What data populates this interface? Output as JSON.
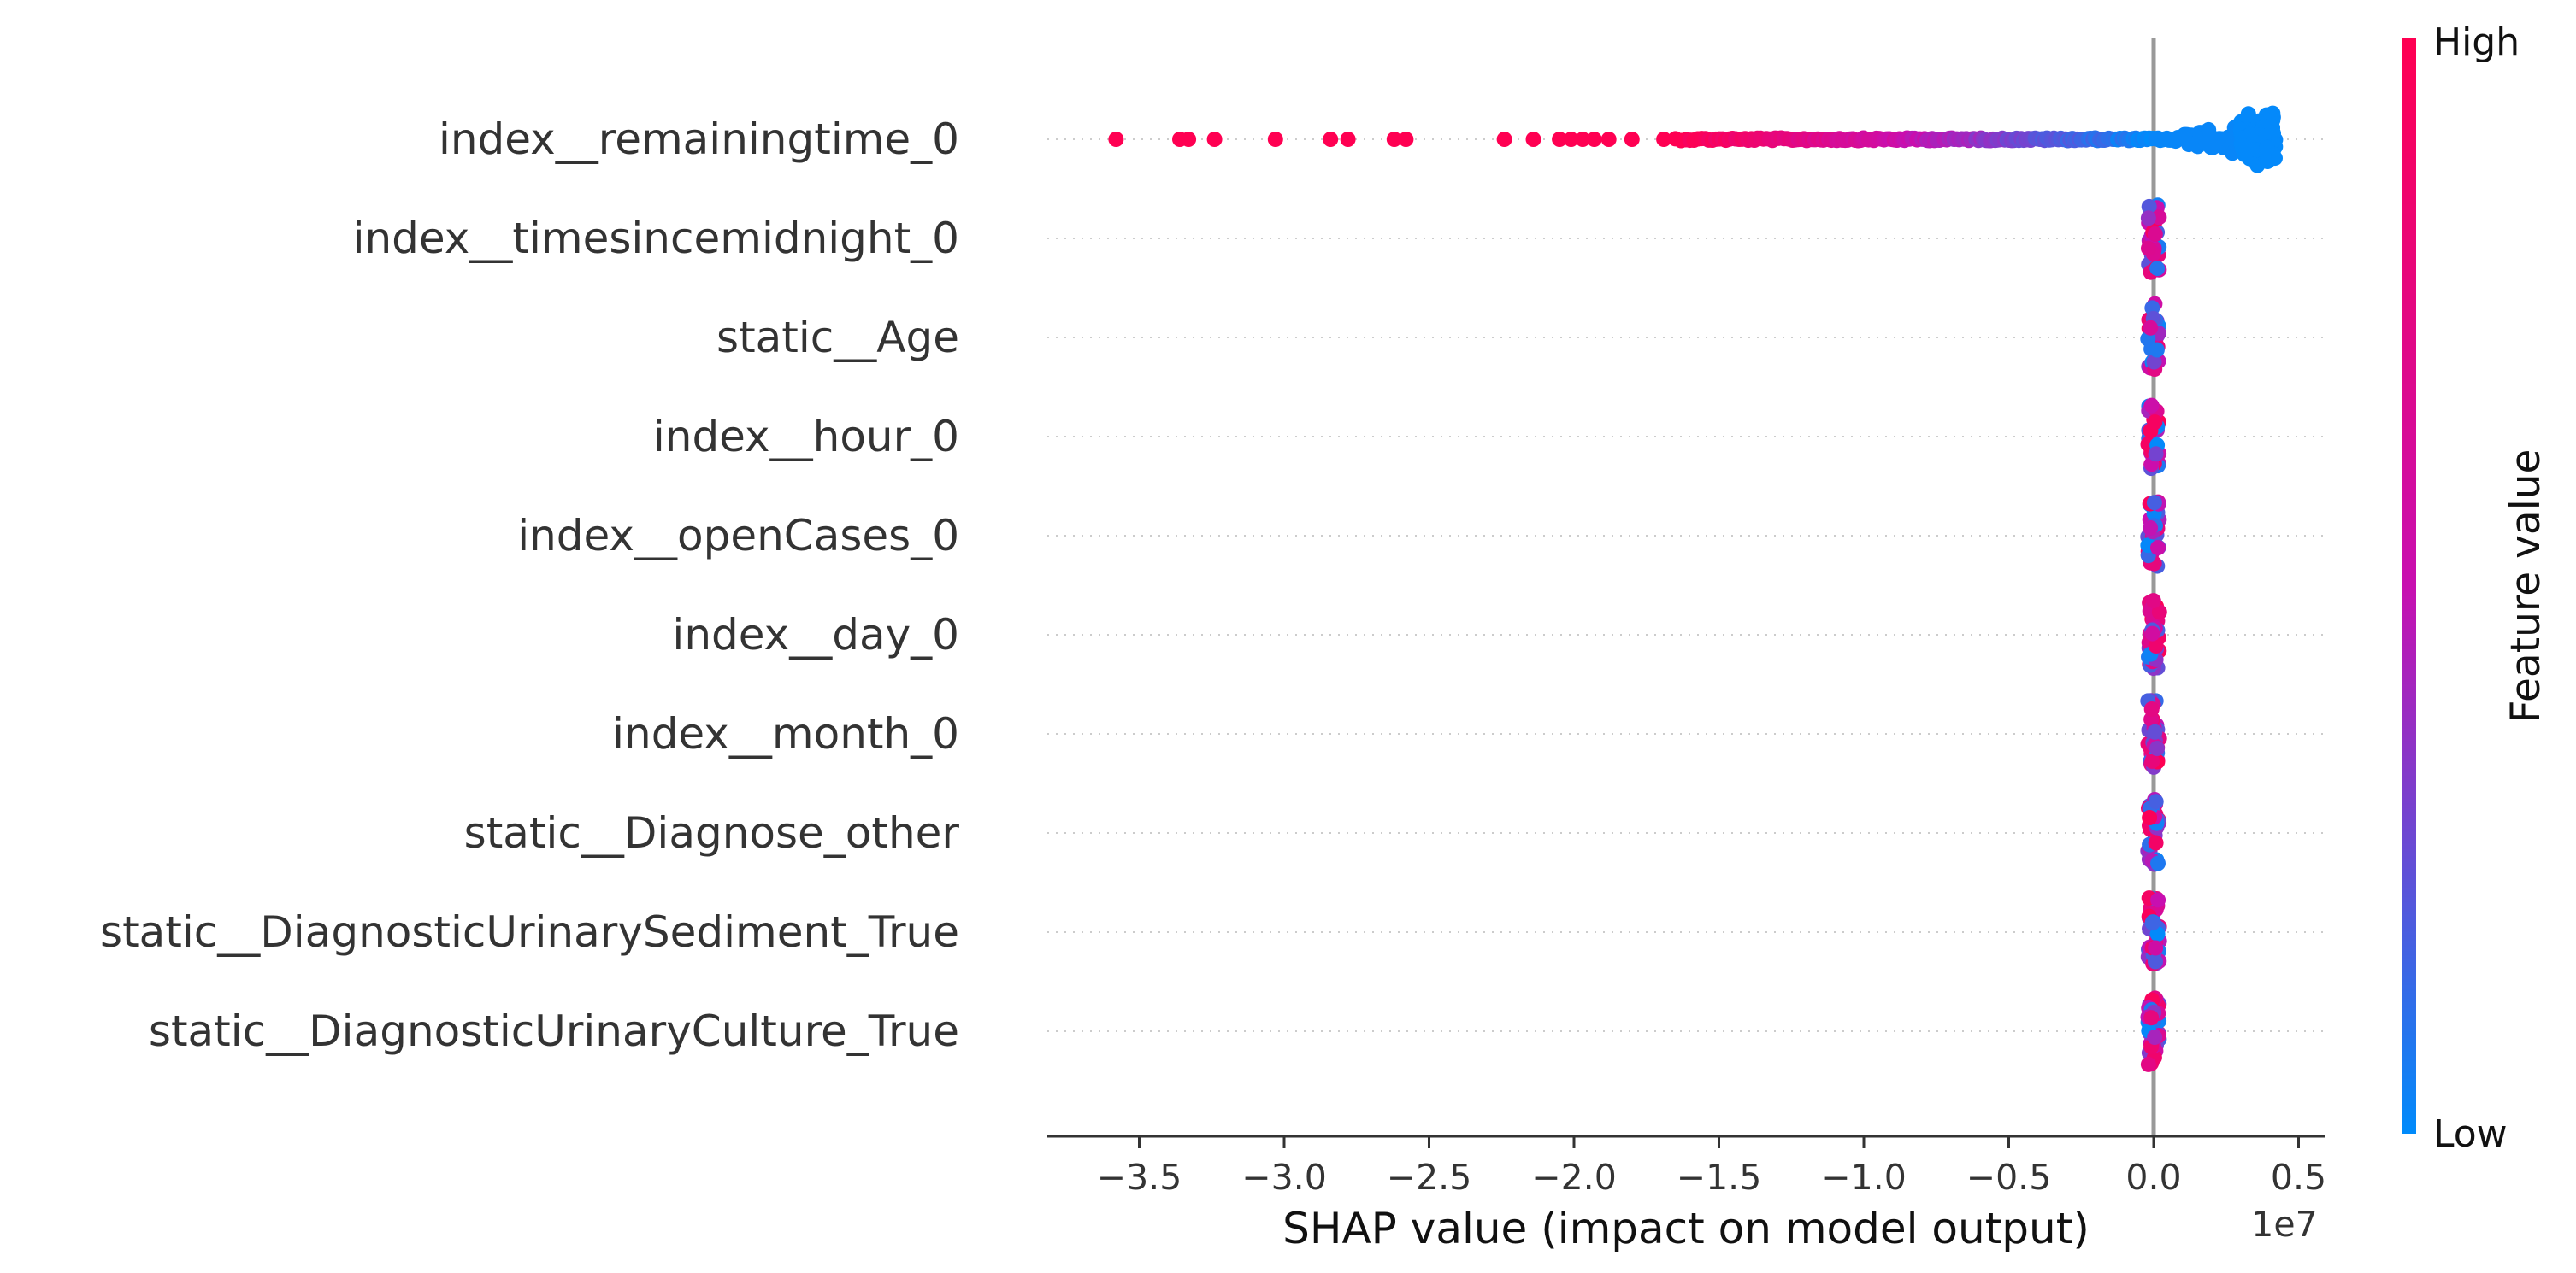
{
  "chart_data": {
    "type": "scatter",
    "subtype": "shap-beeswarm",
    "xlabel": "SHAP value (impact on model output)",
    "x_offset_label": "1e7",
    "xlim": [
      -3.78,
      0.6
    ],
    "x_ticks": [
      {
        "value": -3.5,
        "label": "−3.5"
      },
      {
        "value": -3.0,
        "label": "−3.0"
      },
      {
        "value": -2.5,
        "label": "−2.5"
      },
      {
        "value": -2.0,
        "label": "−2.0"
      },
      {
        "value": -1.5,
        "label": "−1.5"
      },
      {
        "value": -1.0,
        "label": "−1.0"
      },
      {
        "value": -0.5,
        "label": "−0.5"
      },
      {
        "value": 0.0,
        "label": "0.0"
      },
      {
        "value": 0.5,
        "label": "0.5"
      }
    ],
    "features": [
      "index__remainingtime_0",
      "index__timesincemidnight_0",
      "static__Age",
      "index__hour_0",
      "index__openCases_0",
      "index__day_0",
      "index__month_0",
      "static__Diagnose_other",
      "static__DiagnosticUrinarySediment_True",
      "static__DiagnosticUrinaryCulture_True"
    ],
    "remainingtime_highlighted_points": [
      {
        "x": -3.58,
        "v": 1.0
      },
      {
        "x": -3.36,
        "v": 1.0
      },
      {
        "x": -3.33,
        "v": 1.0
      },
      {
        "x": -3.24,
        "v": 1.0
      },
      {
        "x": -3.03,
        "v": 1.0
      },
      {
        "x": -2.84,
        "v": 1.0
      },
      {
        "x": -2.78,
        "v": 1.0
      },
      {
        "x": -2.62,
        "v": 1.0
      },
      {
        "x": -2.58,
        "v": 1.0
      },
      {
        "x": -2.24,
        "v": 1.0
      },
      {
        "x": -2.14,
        "v": 1.0
      },
      {
        "x": -2.05,
        "v": 1.0
      },
      {
        "x": -2.01,
        "v": 1.0
      },
      {
        "x": -1.97,
        "v": 1.0
      },
      {
        "x": -1.93,
        "v": 1.0
      },
      {
        "x": -1.88,
        "v": 1.0
      },
      {
        "x": -1.8,
        "v": 1.0
      },
      {
        "x": -1.69,
        "v": 1.0
      }
    ],
    "remainingtime_range": {
      "min": -1.65,
      "max": 0.42,
      "dense_from": 0.3
    },
    "near_zero_features_range": [
      -0.02,
      0.02
    ],
    "colorbar": {
      "title": "Feature value",
      "high_label": "High",
      "low_label": "Low",
      "high_color": "#ff0052",
      "mid_color": "#c80fb0",
      "low_color": "#008bfb"
    },
    "zero_line_color": "#999999",
    "grid": "dotted horizontal per feature"
  }
}
